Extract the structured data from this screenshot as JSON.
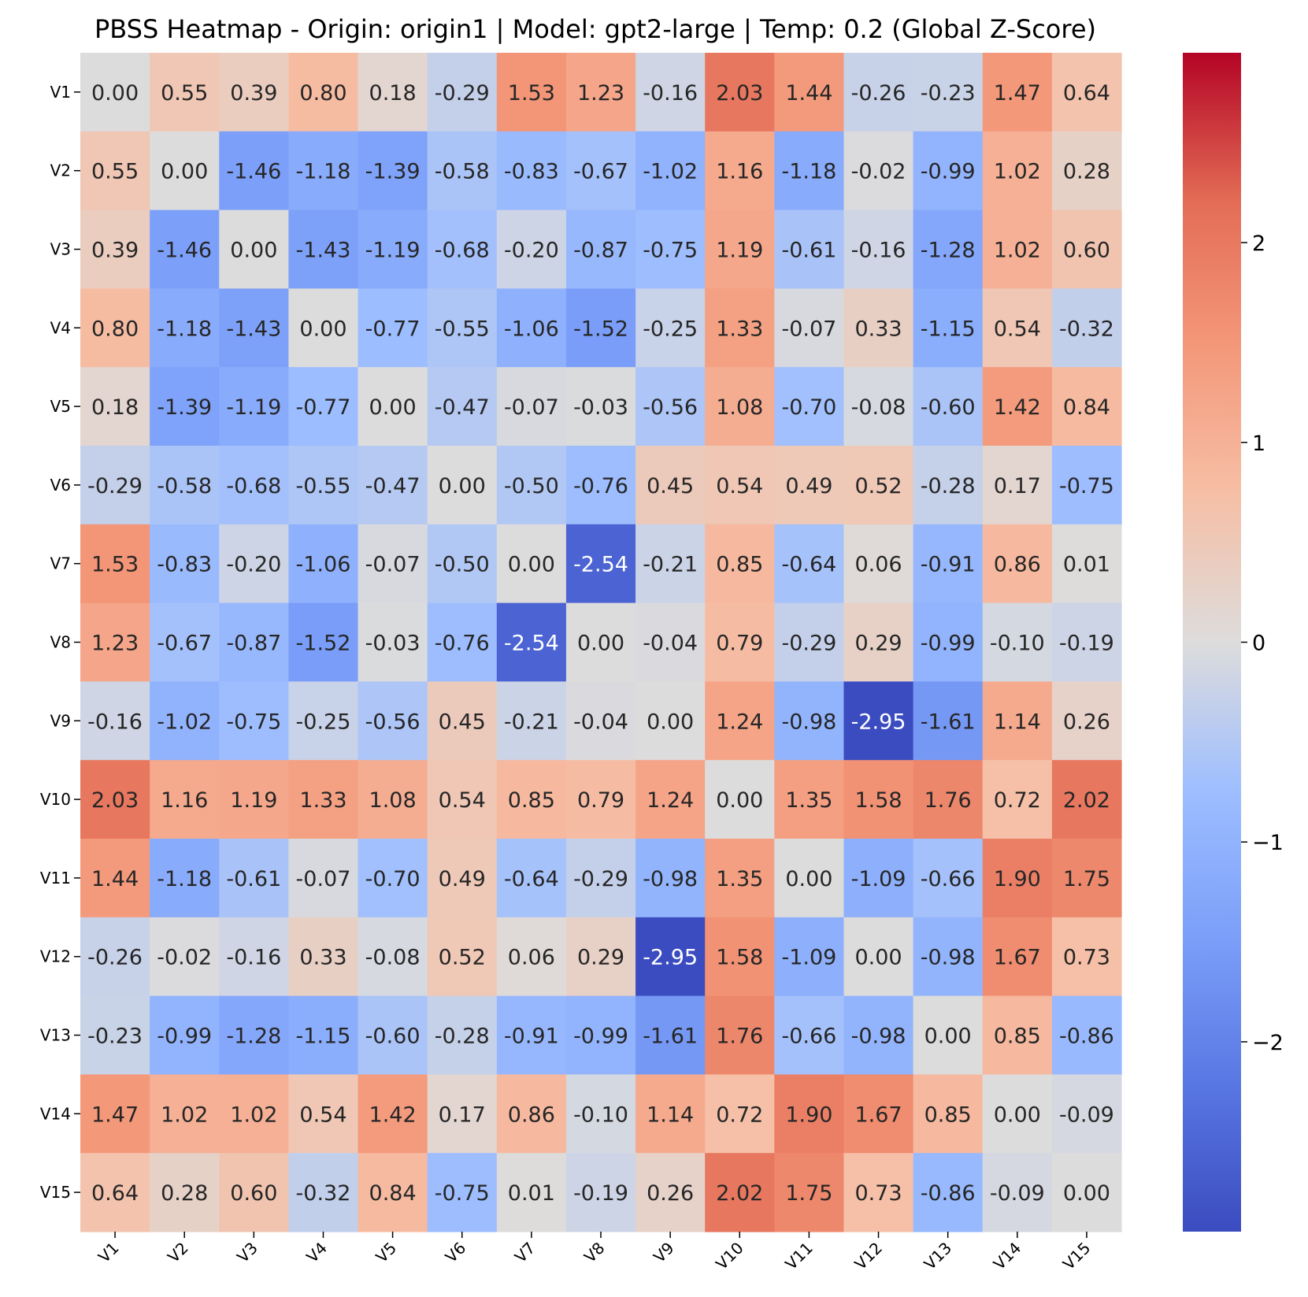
{
  "chart_data": {
    "type": "heatmap",
    "title": "PBSS Heatmap - Origin: origin1 | Model: gpt2-large | Temp: 0.2 (Global Z-Score)",
    "xlabel": "",
    "ylabel": "",
    "x_labels": [
      "V1",
      "V2",
      "V3",
      "V4",
      "V5",
      "V6",
      "V7",
      "V8",
      "V9",
      "V10",
      "V11",
      "V12",
      "V13",
      "V14",
      "V15"
    ],
    "y_labels": [
      "V1",
      "V2",
      "V3",
      "V4",
      "V5",
      "V6",
      "V7",
      "V8",
      "V9",
      "V10",
      "V11",
      "V12",
      "V13",
      "V14",
      "V15"
    ],
    "values": [
      [
        0.0,
        0.55,
        0.39,
        0.8,
        0.18,
        -0.29,
        1.53,
        1.23,
        -0.16,
        2.03,
        1.44,
        -0.26,
        -0.23,
        1.47,
        0.64
      ],
      [
        0.55,
        0.0,
        -1.46,
        -1.18,
        -1.39,
        -0.58,
        -0.83,
        -0.67,
        -1.02,
        1.16,
        -1.18,
        -0.02,
        -0.99,
        1.02,
        0.28
      ],
      [
        0.39,
        -1.46,
        0.0,
        -1.43,
        -1.19,
        -0.68,
        -0.2,
        -0.87,
        -0.75,
        1.19,
        -0.61,
        -0.16,
        -1.28,
        1.02,
        0.6
      ],
      [
        0.8,
        -1.18,
        -1.43,
        0.0,
        -0.77,
        -0.55,
        -1.06,
        -1.52,
        -0.25,
        1.33,
        -0.07,
        0.33,
        -1.15,
        0.54,
        -0.32
      ],
      [
        0.18,
        -1.39,
        -1.19,
        -0.77,
        0.0,
        -0.47,
        -0.07,
        -0.03,
        -0.56,
        1.08,
        -0.7,
        -0.08,
        -0.6,
        1.42,
        0.84
      ],
      [
        -0.29,
        -0.58,
        -0.68,
        -0.55,
        -0.47,
        0.0,
        -0.5,
        -0.76,
        0.45,
        0.54,
        0.49,
        0.52,
        -0.28,
        0.17,
        -0.75
      ],
      [
        1.53,
        -0.83,
        -0.2,
        -1.06,
        -0.07,
        -0.5,
        0.0,
        -2.54,
        -0.21,
        0.85,
        -0.64,
        0.06,
        -0.91,
        0.86,
        0.01
      ],
      [
        1.23,
        -0.67,
        -0.87,
        -1.52,
        -0.03,
        -0.76,
        -2.54,
        0.0,
        -0.04,
        0.79,
        -0.29,
        0.29,
        -0.99,
        -0.1,
        -0.19
      ],
      [
        -0.16,
        -1.02,
        -0.75,
        -0.25,
        -0.56,
        0.45,
        -0.21,
        -0.04,
        0.0,
        1.24,
        -0.98,
        -2.95,
        -1.61,
        1.14,
        0.26
      ],
      [
        2.03,
        1.16,
        1.19,
        1.33,
        1.08,
        0.54,
        0.85,
        0.79,
        1.24,
        0.0,
        1.35,
        1.58,
        1.76,
        0.72,
        2.02
      ],
      [
        1.44,
        -1.18,
        -0.61,
        -0.07,
        -0.7,
        0.49,
        -0.64,
        -0.29,
        -0.98,
        1.35,
        0.0,
        -1.09,
        -0.66,
        1.9,
        1.75
      ],
      [
        -0.26,
        -0.02,
        -0.16,
        0.33,
        -0.08,
        0.52,
        0.06,
        0.29,
        -2.95,
        1.58,
        -1.09,
        0.0,
        -0.98,
        1.67,
        0.73
      ],
      [
        -0.23,
        -0.99,
        -1.28,
        -1.15,
        -0.6,
        -0.28,
        -0.91,
        -0.99,
        -1.61,
        1.76,
        -0.66,
        -0.98,
        0.0,
        0.85,
        -0.86
      ],
      [
        1.47,
        1.02,
        1.02,
        0.54,
        1.42,
        0.17,
        0.86,
        -0.1,
        1.14,
        0.72,
        1.9,
        1.67,
        0.85,
        0.0,
        -0.09
      ],
      [
        0.64,
        0.28,
        0.6,
        -0.32,
        0.84,
        -0.75,
        0.01,
        -0.19,
        0.26,
        2.02,
        1.75,
        0.73,
        -0.86,
        -0.09,
        0.0
      ]
    ],
    "colormap": "coolwarm",
    "vmin": -2.95,
    "vmax": 2.95,
    "colorbar": {
      "ticks": [
        -2,
        -1,
        0,
        1,
        2
      ],
      "tick_labels": [
        "−2",
        "−1",
        "0",
        "1",
        "2"
      ],
      "position": "right"
    },
    "annotated": true,
    "number_format": "0.00"
  }
}
